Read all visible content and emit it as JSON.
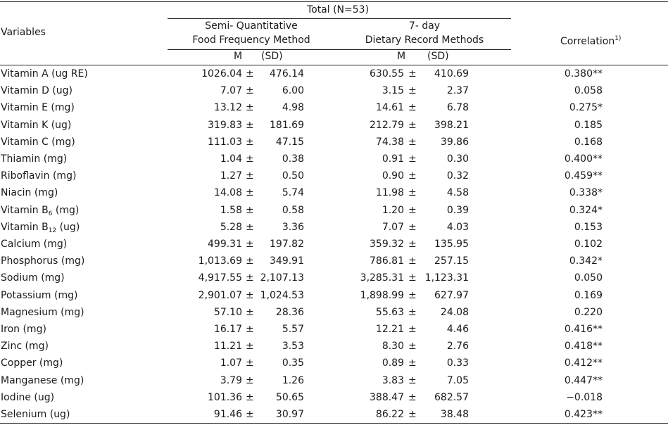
{
  "header": {
    "total": "Total (N=53)",
    "variables": "Variables",
    "sqffm_line1": "Semi- Quantitative",
    "sqffm_line2": "Food Frequency Method",
    "dr_line1": "7- day",
    "dr_line2": "Dietary Record Methods",
    "correlation": "Correlation",
    "correlation_note": "1)",
    "m1": "M",
    "sd1": "(SD)",
    "m2": "M",
    "sd2": "(SD)"
  },
  "pm": "±",
  "rows": [
    {
      "label": "Vitamin A (ug RE)",
      "sub": "",
      "unit": "",
      "m1": "1026.04",
      "sd1": "476.14",
      "m2": "630.55",
      "sd2": "410.69",
      "corr": "0.380**"
    },
    {
      "label": "Vitamin D (ug)",
      "sub": "",
      "unit": "",
      "m1": "7.07",
      "sd1": "6.00",
      "m2": "3.15",
      "sd2": "2.37",
      "corr": "0.058"
    },
    {
      "label": "Vitamin E (mg)",
      "sub": "",
      "unit": "",
      "m1": "13.12",
      "sd1": "4.98",
      "m2": "14.61",
      "sd2": "6.78",
      "corr": "0.275*"
    },
    {
      "label": "Vitamin K (ug)",
      "sub": "",
      "unit": "",
      "m1": "319.83",
      "sd1": "181.69",
      "m2": "212.79",
      "sd2": "398.21",
      "corr": "0.185"
    },
    {
      "label": "Vitamin C (mg)",
      "sub": "",
      "unit": "",
      "m1": "111.03",
      "sd1": "47.15",
      "m2": "74.38",
      "sd2": "39.86",
      "corr": "0.168"
    },
    {
      "label": "Thiamin (mg)",
      "sub": "",
      "unit": "",
      "m1": "1.04",
      "sd1": "0.38",
      "m2": "0.91",
      "sd2": "0.30",
      "corr": "0.400**"
    },
    {
      "label": "Riboflavin (mg)",
      "sub": "",
      "unit": "",
      "m1": "1.27",
      "sd1": "0.50",
      "m2": "0.90",
      "sd2": "0.32",
      "corr": "0.459**"
    },
    {
      "label": "Niacin (mg)",
      "sub": "",
      "unit": "",
      "m1": "14.08",
      "sd1": "5.74",
      "m2": "11.98",
      "sd2": "4.58",
      "corr": "0.338*"
    },
    {
      "label": "Vitamin B",
      "sub": "6",
      "unit": " (mg)",
      "m1": "1.58",
      "sd1": "0.58",
      "m2": "1.20",
      "sd2": "0.39",
      "corr": "0.324*"
    },
    {
      "label": "Vitamin B",
      "sub": "12",
      "unit": " (ug)",
      "m1": "5.28",
      "sd1": "3.36",
      "m2": "7.07",
      "sd2": "4.03",
      "corr": "0.153"
    },
    {
      "label": "Calcium (mg)",
      "sub": "",
      "unit": "",
      "m1": "499.31",
      "sd1": "197.82",
      "m2": "359.32",
      "sd2": "135.95",
      "corr": "0.102"
    },
    {
      "label": "Phosphorus (mg)",
      "sub": "",
      "unit": "",
      "m1": "1,013.69",
      "sd1": "349.91",
      "m2": "786.81",
      "sd2": "257.15",
      "corr": "0.342*"
    },
    {
      "label": "Sodium (mg)",
      "sub": "",
      "unit": "",
      "m1": "4,917.55",
      "sd1": "2,107.13",
      "m2": "3,285.31",
      "sd2": "1,123.31",
      "corr": "0.050"
    },
    {
      "label": "Potassium (mg)",
      "sub": "",
      "unit": "",
      "m1": "2,901.07",
      "sd1": "1,024.53",
      "m2": "1,898.99",
      "sd2": "627.97",
      "corr": "0.169"
    },
    {
      "label": "Magnesium (mg)",
      "sub": "",
      "unit": "",
      "m1": "57.10",
      "sd1": "28.36",
      "m2": "55.63",
      "sd2": "24.08",
      "corr": "0.220"
    },
    {
      "label": "Iron (mg)",
      "sub": "",
      "unit": "",
      "m1": "16.17",
      "sd1": "5.57",
      "m2": "12.21",
      "sd2": "4.46",
      "corr": "0.416**"
    },
    {
      "label": "Zinc (mg)",
      "sub": "",
      "unit": "",
      "m1": "11.21",
      "sd1": "3.53",
      "m2": "8.30",
      "sd2": "2.76",
      "corr": "0.418**"
    },
    {
      "label": "Copper (mg)",
      "sub": "",
      "unit": "",
      "m1": "1.07",
      "sd1": "0.35",
      "m2": "0.89",
      "sd2": "0.33",
      "corr": "0.412**"
    },
    {
      "label": "Manganese (mg)",
      "sub": "",
      "unit": "",
      "m1": "3.79",
      "sd1": "1.26",
      "m2": "3.83",
      "sd2": "7.05",
      "corr": "0.447**"
    },
    {
      "label": "Iodine (ug)",
      "sub": "",
      "unit": "",
      "m1": "101.36",
      "sd1": "50.65",
      "m2": "388.47",
      "sd2": "682.57",
      "corr": "−0.018"
    },
    {
      "label": "Selenium (ug)",
      "sub": "",
      "unit": "",
      "m1": "91.46",
      "sd1": "30.97",
      "m2": "86.22",
      "sd2": "38.48",
      "corr": "0.423**"
    }
  ]
}
